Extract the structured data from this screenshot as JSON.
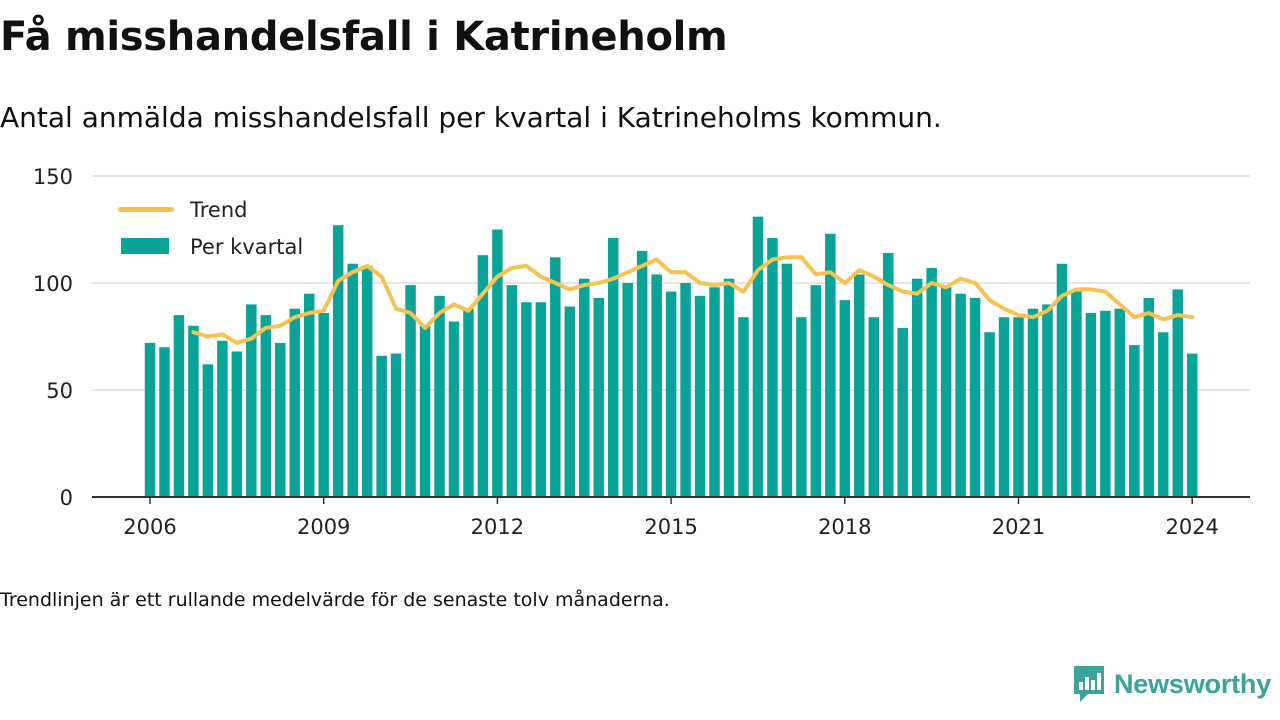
{
  "title": "Få misshandelsfall i Katrineholm",
  "subtitle": "Antal anmälda misshandelsfall per kvartal i Katrineholms kommun.",
  "footnote": "Trendlinjen är ett rullande medelvärde för de senaste tolv månaderna.",
  "brand": {
    "name": "Newsworthy",
    "icon": "bar-chart-speech-bubble-icon"
  },
  "colors": {
    "bars": "#0aa397",
    "trend": "#f6c353",
    "grid": "#dddddd",
    "axis": "#333333",
    "brand": "#3aa39a"
  },
  "chart_data": {
    "type": "bar",
    "x_unit": "quarter",
    "first_quarter": "2006 Q1",
    "xticks": [
      2006,
      2009,
      2012,
      2015,
      2018,
      2021,
      2024
    ],
    "yticks": [
      0,
      50,
      100,
      150
    ],
    "ylim": [
      0,
      150
    ],
    "grid": true,
    "legend_position": "top-left",
    "series": [
      {
        "name": "Per kvartal",
        "type": "bar",
        "values": [
          72,
          70,
          85,
          80,
          62,
          73,
          68,
          90,
          85,
          72,
          88,
          95,
          86,
          127,
          109,
          108,
          66,
          67,
          99,
          80,
          94,
          82,
          88,
          113,
          125,
          99,
          91,
          91,
          112,
          89,
          102,
          93,
          121,
          100,
          115,
          104,
          96,
          100,
          94,
          98,
          102,
          84,
          131,
          121,
          109,
          84,
          99,
          123,
          92,
          104,
          84,
          114,
          79,
          102,
          107,
          98,
          95,
          93,
          77,
          84,
          84,
          88,
          90,
          109,
          96,
          86,
          87,
          88,
          71,
          93,
          77,
          97,
          67
        ]
      },
      {
        "name": "Trend",
        "type": "line",
        "values": [
          null,
          null,
          null,
          77,
          75,
          76,
          72,
          74,
          79,
          80,
          84,
          86,
          87,
          101,
          105,
          108,
          103,
          88,
          86,
          79,
          86,
          90,
          87,
          95,
          103,
          107,
          108,
          103,
          100,
          97,
          99,
          100,
          102,
          105,
          108,
          111,
          105,
          105,
          100,
          99,
          100,
          96,
          106,
          111,
          112,
          112,
          104,
          105,
          100,
          106,
          103,
          99,
          96,
          95,
          100,
          98,
          102,
          100,
          92,
          88,
          85,
          84,
          87,
          94,
          97,
          97,
          96,
          90,
          84,
          86,
          83,
          85,
          84
        ]
      }
    ]
  }
}
